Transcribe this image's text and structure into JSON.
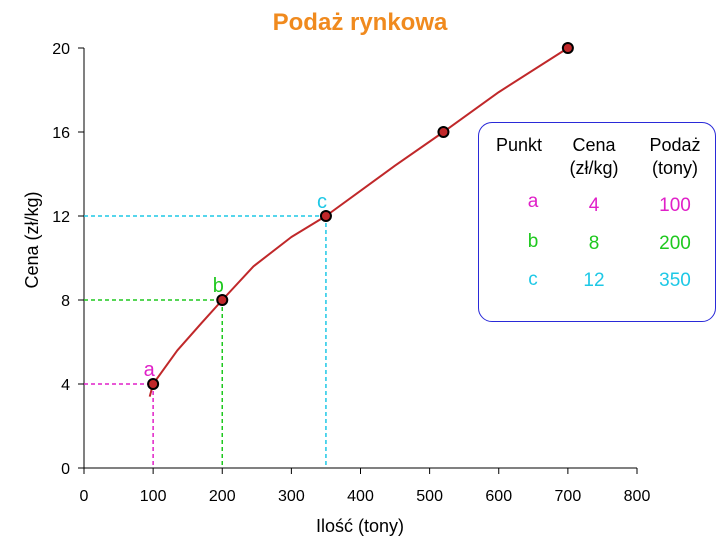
{
  "colors": {
    "title": "#f08a1e",
    "curve": "#c0282a",
    "point_fill": "#c0282a",
    "point_stroke": "#000000",
    "a": "#e020c8",
    "b": "#1ec81e",
    "c": "#1ec8e6",
    "box_border": "#2a2ad8"
  },
  "chart_data": {
    "type": "line",
    "title": "Podaż rynkowa",
    "xlabel": "Ilość (tony)",
    "ylabel": "Cena (zł/kg)",
    "xlim": [
      0,
      800
    ],
    "ylim": [
      0,
      20
    ],
    "xticks": [
      "0",
      "100",
      "200",
      "300",
      "400",
      "500",
      "600",
      "700",
      "800"
    ],
    "yticks": [
      "0",
      "4",
      "8",
      "12",
      "16",
      "20"
    ],
    "series": [
      {
        "name": "Podaż",
        "curve": [
          [
            95,
            3.4
          ],
          [
            100,
            4
          ],
          [
            135,
            5.6
          ],
          [
            170,
            6.9
          ],
          [
            200,
            8
          ],
          [
            245,
            9.6
          ],
          [
            300,
            11
          ],
          [
            350,
            12
          ],
          [
            400,
            13.2
          ],
          [
            450,
            14.4
          ],
          [
            520,
            16
          ],
          [
            600,
            17.9
          ],
          [
            700,
            20
          ]
        ],
        "markers": [
          [
            100,
            4
          ],
          [
            200,
            8
          ],
          [
            350,
            12
          ],
          [
            520,
            16
          ],
          [
            700,
            20
          ]
        ]
      }
    ],
    "highlighted": [
      {
        "label": "a",
        "x": 100,
        "y": 4
      },
      {
        "label": "b",
        "x": 200,
        "y": 8
      },
      {
        "label": "c",
        "x": 350,
        "y": 12
      }
    ],
    "table": {
      "headers": [
        {
          "line1": "Punkt",
          "line2": ""
        },
        {
          "line1": "Cena",
          "line2": "(zł/kg)"
        },
        {
          "line1": "Podaż",
          "line2": "(tony)"
        }
      ],
      "rows": [
        {
          "punkt": "a",
          "cena": "4",
          "podaz": "100"
        },
        {
          "punkt": "b",
          "cena": "8",
          "podaz": "200"
        },
        {
          "punkt": "c",
          "cena": "12",
          "podaz": "350"
        }
      ]
    }
  }
}
